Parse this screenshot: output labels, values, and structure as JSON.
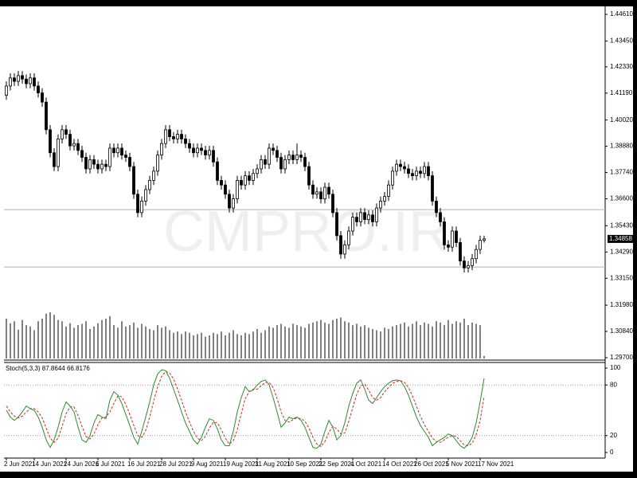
{
  "chart_data": {
    "type": "candlestick",
    "watermark": "CMPRO.IR",
    "open": [
      1.411,
      1.415,
      1.4185,
      1.417,
      1.4195,
      1.418,
      1.416,
      1.4185,
      1.415,
      1.412,
      1.408,
      1.396,
      1.386,
      1.38,
      1.392,
      1.396,
      1.394,
      1.389,
      1.39,
      1.387,
      1.384,
      1.379,
      1.383,
      1.381,
      1.379,
      1.381,
      1.38,
      1.388,
      1.386,
      1.388,
      1.385,
      1.384,
      1.38,
      1.368,
      1.36,
      1.365,
      1.37,
      1.374,
      1.378,
      1.385,
      1.39,
      1.396,
      1.393,
      1.392,
      1.394,
      1.392,
      1.39,
      1.388,
      1.386,
      1.388,
      1.387,
      1.385,
      1.387,
      1.382,
      1.374,
      1.372,
      1.368,
      1.362,
      1.366,
      1.374,
      1.372,
      1.376,
      1.374,
      1.377,
      1.379,
      1.383,
      1.381,
      1.388,
      1.387,
      1.384,
      1.379,
      1.383,
      1.385,
      1.383,
      1.385,
      1.384,
      1.38,
      1.372,
      1.368,
      1.369,
      1.366,
      1.371,
      1.368,
      1.36,
      1.35,
      1.342,
      1.346,
      1.352,
      1.358,
      1.356,
      1.36,
      1.357,
      1.359,
      1.356,
      1.362,
      1.365,
      1.367,
      1.372,
      1.378,
      1.381,
      1.38,
      1.379,
      1.377,
      1.376,
      1.378,
      1.377,
      1.38,
      1.376,
      1.365,
      1.36,
      1.356,
      1.346,
      1.345,
      1.352,
      1.347,
      1.339,
      1.336,
      1.337,
      1.34,
      1.344,
      1.348
    ],
    "high": [
      1.417,
      1.4205,
      1.4205,
      1.4215,
      1.4215,
      1.42,
      1.4205,
      1.4205,
      1.417,
      1.414,
      1.41,
      1.398,
      1.388,
      1.394,
      1.398,
      1.398,
      1.396,
      1.392,
      1.392,
      1.389,
      1.386,
      1.385,
      1.385,
      1.383,
      1.383,
      1.383,
      1.39,
      1.39,
      1.39,
      1.39,
      1.387,
      1.386,
      1.382,
      1.37,
      1.367,
      1.372,
      1.376,
      1.38,
      1.387,
      1.392,
      1.398,
      1.398,
      1.395,
      1.396,
      1.396,
      1.394,
      1.392,
      1.39,
      1.39,
      1.39,
      1.389,
      1.389,
      1.389,
      1.384,
      1.376,
      1.374,
      1.37,
      1.368,
      1.376,
      1.376,
      1.378,
      1.378,
      1.379,
      1.381,
      1.385,
      1.385,
      1.39,
      1.39,
      1.389,
      1.386,
      1.385,
      1.387,
      1.387,
      1.39,
      1.387,
      1.386,
      1.382,
      1.374,
      1.371,
      1.371,
      1.373,
      1.373,
      1.37,
      1.362,
      1.352,
      1.348,
      1.354,
      1.36,
      1.36,
      1.362,
      1.362,
      1.361,
      1.361,
      1.364,
      1.367,
      1.369,
      1.374,
      1.38,
      1.383,
      1.383,
      1.382,
      1.381,
      1.379,
      1.38,
      1.38,
      1.382,
      1.382,
      1.378,
      1.367,
      1.362,
      1.358,
      1.348,
      1.354,
      1.354,
      1.349,
      1.341,
      1.339,
      1.342,
      1.346,
      1.35,
      1.35
    ],
    "low": [
      1.409,
      1.413,
      1.415,
      1.415,
      1.416,
      1.414,
      1.414,
      1.413,
      1.41,
      1.406,
      1.394,
      1.384,
      1.378,
      1.378,
      1.39,
      1.392,
      1.387,
      1.387,
      1.385,
      1.382,
      1.377,
      1.377,
      1.379,
      1.377,
      1.377,
      1.378,
      1.378,
      1.384,
      1.384,
      1.383,
      1.382,
      1.378,
      1.366,
      1.358,
      1.358,
      1.363,
      1.368,
      1.372,
      1.376,
      1.383,
      1.388,
      1.391,
      1.39,
      1.39,
      1.39,
      1.388,
      1.386,
      1.384,
      1.384,
      1.385,
      1.383,
      1.383,
      1.38,
      1.372,
      1.37,
      1.366,
      1.36,
      1.36,
      1.364,
      1.37,
      1.37,
      1.372,
      1.372,
      1.375,
      1.377,
      1.379,
      1.379,
      1.385,
      1.382,
      1.377,
      1.377,
      1.381,
      1.381,
      1.381,
      1.382,
      1.378,
      1.37,
      1.366,
      1.366,
      1.364,
      1.364,
      1.366,
      1.358,
      1.348,
      1.34,
      1.34,
      1.344,
      1.35,
      1.354,
      1.354,
      1.355,
      1.355,
      1.354,
      1.354,
      1.36,
      1.363,
      1.365,
      1.37,
      1.376,
      1.378,
      1.377,
      1.375,
      1.374,
      1.374,
      1.375,
      1.375,
      1.374,
      1.363,
      1.358,
      1.354,
      1.344,
      1.343,
      1.343,
      1.345,
      1.337,
      1.334,
      1.334,
      1.335,
      1.338,
      1.342,
      1.347
    ],
    "close": [
      1.415,
      1.4185,
      1.417,
      1.4195,
      1.418,
      1.416,
      1.4185,
      1.415,
      1.412,
      1.408,
      1.396,
      1.386,
      1.38,
      1.392,
      1.396,
      1.394,
      1.389,
      1.39,
      1.387,
      1.384,
      1.379,
      1.383,
      1.381,
      1.379,
      1.381,
      1.38,
      1.388,
      1.386,
      1.388,
      1.385,
      1.384,
      1.38,
      1.368,
      1.36,
      1.365,
      1.37,
      1.374,
      1.378,
      1.385,
      1.39,
      1.396,
      1.393,
      1.392,
      1.394,
      1.392,
      1.39,
      1.388,
      1.386,
      1.388,
      1.387,
      1.385,
      1.387,
      1.382,
      1.374,
      1.372,
      1.368,
      1.362,
      1.366,
      1.374,
      1.372,
      1.376,
      1.374,
      1.377,
      1.379,
      1.383,
      1.381,
      1.388,
      1.387,
      1.384,
      1.379,
      1.383,
      1.385,
      1.383,
      1.385,
      1.384,
      1.38,
      1.372,
      1.368,
      1.369,
      1.366,
      1.371,
      1.368,
      1.36,
      1.35,
      1.342,
      1.346,
      1.352,
      1.358,
      1.356,
      1.36,
      1.357,
      1.359,
      1.356,
      1.362,
      1.365,
      1.367,
      1.372,
      1.378,
      1.381,
      1.38,
      1.379,
      1.377,
      1.376,
      1.378,
      1.377,
      1.38,
      1.376,
      1.365,
      1.36,
      1.356,
      1.346,
      1.345,
      1.352,
      1.347,
      1.339,
      1.336,
      1.337,
      1.34,
      1.344,
      1.348,
      1.34858
    ],
    "volume": [
      62,
      55,
      58,
      45,
      60,
      52,
      50,
      44,
      58,
      62,
      70,
      72,
      68,
      60,
      58,
      50,
      55,
      48,
      52,
      54,
      58,
      46,
      50,
      55,
      60,
      62,
      66,
      52,
      48,
      58,
      50,
      52,
      56,
      48,
      54,
      50,
      46,
      44,
      52,
      48,
      50,
      44,
      40,
      42,
      38,
      42,
      40,
      36,
      38,
      40,
      34,
      36,
      40,
      38,
      42,
      36,
      40,
      44,
      38,
      36,
      40,
      38,
      42,
      46,
      40,
      44,
      50,
      48,
      52,
      54,
      50,
      48,
      54,
      52,
      50,
      48,
      54,
      56,
      58,
      60,
      56,
      54,
      60,
      62,
      64,
      58,
      56,
      52,
      54,
      50,
      52,
      48,
      46,
      44,
      42,
      48,
      46,
      50,
      52,
      54,
      56,
      50,
      54,
      58,
      52,
      56,
      54,
      50,
      58,
      56,
      52,
      60,
      54,
      58,
      56,
      62,
      52,
      56,
      54,
      52,
      4
    ],
    "ylim": [
      1.297,
      1.4461
    ],
    "yticks": [
      {
        "value": 1.4461,
        "label": "1.44610"
      },
      {
        "value": 1.4345,
        "label": "1.43450"
      },
      {
        "value": 1.4233,
        "label": "1.42330"
      },
      {
        "value": 1.4119,
        "label": "1.41190"
      },
      {
        "value": 1.4002,
        "label": "1.40020"
      },
      {
        "value": 1.3888,
        "label": "1.38880"
      },
      {
        "value": 1.3774,
        "label": "1.37740"
      },
      {
        "value": 1.366,
        "label": "1.36600"
      },
      {
        "value": 1.3543,
        "label": "1.35430"
      },
      {
        "value": 1.3429,
        "label": "1.34290"
      },
      {
        "value": 1.3315,
        "label": "1.33150"
      },
      {
        "value": 1.3198,
        "label": "1.31980"
      },
      {
        "value": 1.3084,
        "label": "1.30840"
      },
      {
        "value": 1.297,
        "label": "1.29700"
      }
    ],
    "levels": [
      1.3613,
      1.3364
    ],
    "xticks": [
      {
        "value": 0,
        "label": "2 Jun 2021"
      },
      {
        "value": 7,
        "label": "14 Jun 2021"
      },
      {
        "value": 15,
        "label": "24 Jun 2021"
      },
      {
        "value": 23,
        "label": "6 Jul 2021"
      },
      {
        "value": 31,
        "label": "16 Jul 2021"
      },
      {
        "value": 39,
        "label": "28 Jul 2021"
      },
      {
        "value": 47,
        "label": "9 Aug 2021"
      },
      {
        "value": 55,
        "label": "19 Aug 2021"
      },
      {
        "value": 63,
        "label": "31 Aug 2021"
      },
      {
        "value": 71,
        "label": "10 Sep 2021"
      },
      {
        "value": 79,
        "label": "22 Sep 2021"
      },
      {
        "value": 87,
        "label": "4 Oct 2021"
      },
      {
        "value": 95,
        "label": "14 Oct 2021"
      },
      {
        "value": 103,
        "label": "26 Oct 2021"
      },
      {
        "value": 111,
        "label": "5 Nov 2021"
      },
      {
        "value": 119,
        "label": "17 Nov 2021"
      }
    ],
    "stochastic": {
      "label": "Stoch(5,3,3) 87.8644 66.8176",
      "k_color": "#2e8b2e",
      "d_color": "#e02020",
      "k": [
        50,
        42,
        38,
        42,
        48,
        55,
        52,
        50,
        42,
        30,
        15,
        6,
        15,
        30,
        48,
        60,
        55,
        48,
        30,
        15,
        12,
        20,
        35,
        45,
        42,
        40,
        62,
        72,
        68,
        58,
        45,
        32,
        18,
        10,
        25,
        42,
        60,
        80,
        93,
        98,
        97,
        88,
        75,
        62,
        48,
        35,
        25,
        15,
        10,
        18,
        30,
        40,
        38,
        28,
        15,
        8,
        8,
        25,
        48,
        65,
        78,
        72,
        74,
        80,
        84,
        86,
        80,
        65,
        48,
        30,
        35,
        42,
        40,
        42,
        38,
        30,
        18,
        6,
        5,
        10,
        25,
        38,
        30,
        15,
        20,
        35,
        55,
        70,
        82,
        86,
        75,
        62,
        58,
        65,
        72,
        78,
        82,
        85,
        86,
        85,
        78,
        68,
        55,
        42,
        32,
        25,
        18,
        8,
        12,
        15,
        18,
        22,
        20,
        14,
        8,
        5,
        10,
        18,
        35,
        60,
        87.8644
      ],
      "d": [
        55,
        48,
        43,
        41,
        43,
        48,
        52,
        52,
        48,
        41,
        29,
        17,
        12,
        17,
        31,
        46,
        54,
        54,
        44,
        31,
        19,
        16,
        22,
        33,
        41,
        42,
        48,
        58,
        67,
        66,
        57,
        45,
        32,
        20,
        18,
        26,
        42,
        61,
        78,
        90,
        96,
        94,
        87,
        75,
        62,
        48,
        36,
        25,
        17,
        14,
        19,
        29,
        36,
        35,
        27,
        17,
        10,
        14,
        27,
        46,
        64,
        72,
        75,
        75,
        79,
        83,
        83,
        77,
        64,
        48,
        38,
        36,
        39,
        41,
        40,
        37,
        29,
        18,
        10,
        7,
        13,
        24,
        31,
        28,
        22,
        23,
        37,
        53,
        69,
        79,
        81,
        74,
        65,
        62,
        65,
        72,
        77,
        82,
        84,
        85,
        83,
        77,
        67,
        55,
        43,
        33,
        25,
        17,
        13,
        12,
        15,
        18,
        20,
        19,
        14,
        9,
        8,
        11,
        21,
        38,
        66.8176
      ],
      "ylim": [
        0,
        100
      ],
      "yticks": [
        100,
        80,
        20,
        0
      ],
      "levels": [
        80,
        20
      ]
    }
  }
}
